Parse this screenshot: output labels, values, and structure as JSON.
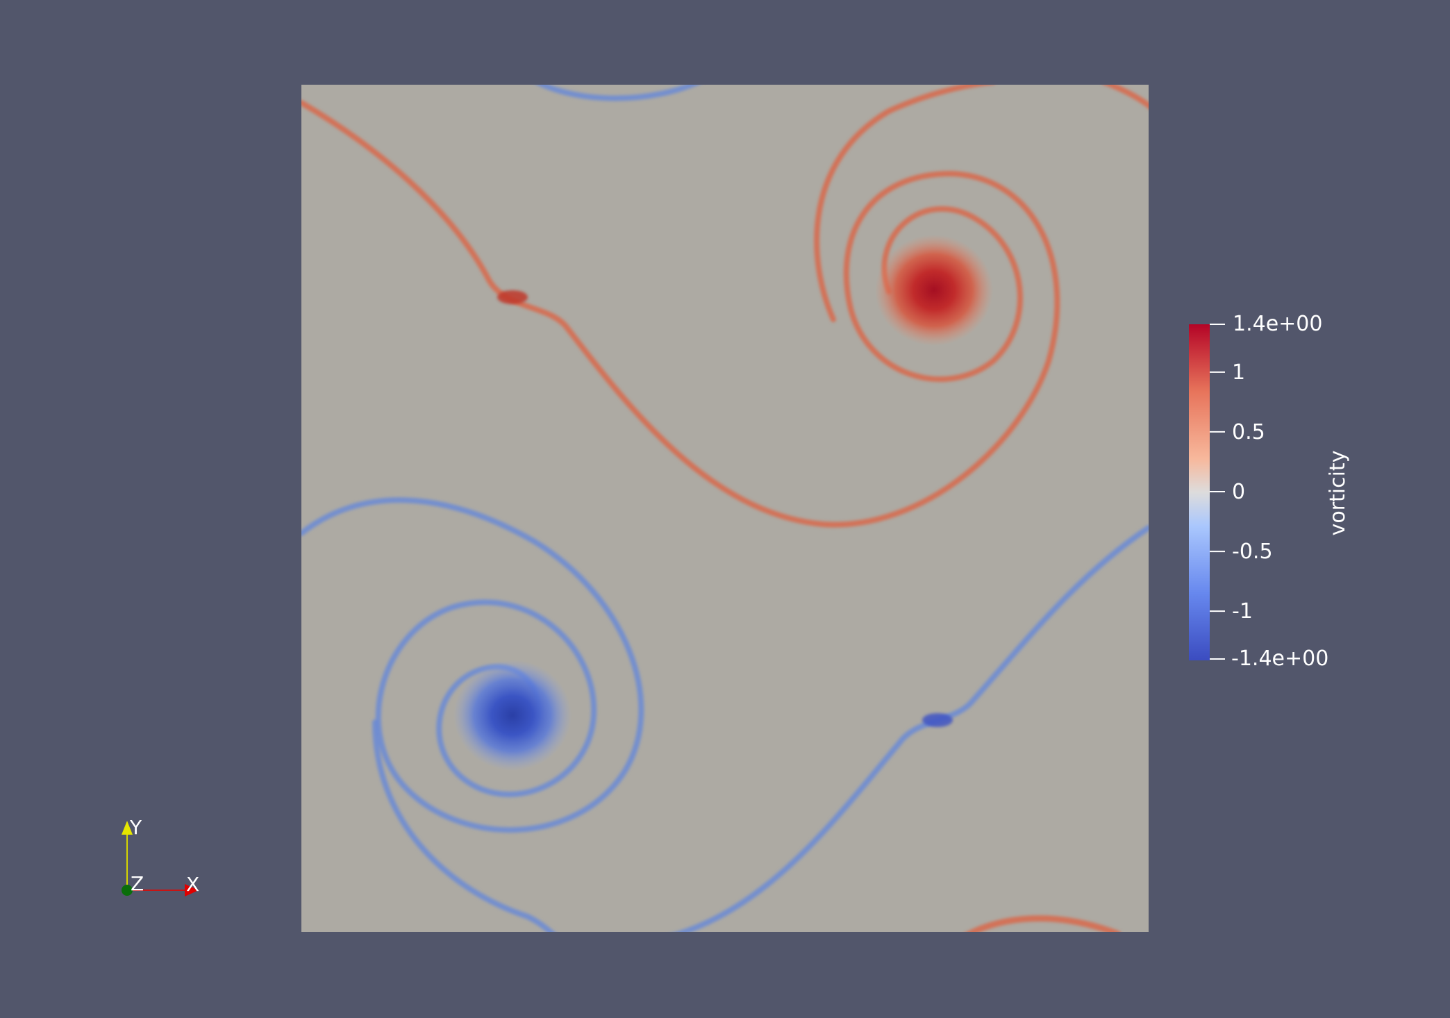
{
  "colors": {
    "background": "#52566b",
    "field_neutral": "#adaaa3",
    "positive": "#b40426",
    "negative": "#3b4cc0",
    "text": "#ffffff"
  },
  "colorbar": {
    "title": "vorticity",
    "range": [
      -1.4,
      1.4
    ],
    "max_label": "1.4e+00",
    "min_label": "-1.4e+00",
    "ticks": [
      {
        "value": 1,
        "label": "1"
      },
      {
        "value": 0.5,
        "label": "0.5"
      },
      {
        "value": 0,
        "label": "0"
      },
      {
        "value": -0.5,
        "label": "-0.5"
      },
      {
        "value": -1,
        "label": "-1"
      }
    ]
  },
  "orientation_axes": {
    "x_label": "X",
    "y_label": "Y",
    "z_label": "Z",
    "x_color": "#ff0000",
    "y_color": "#ffff00",
    "z_color": "#006400"
  }
}
